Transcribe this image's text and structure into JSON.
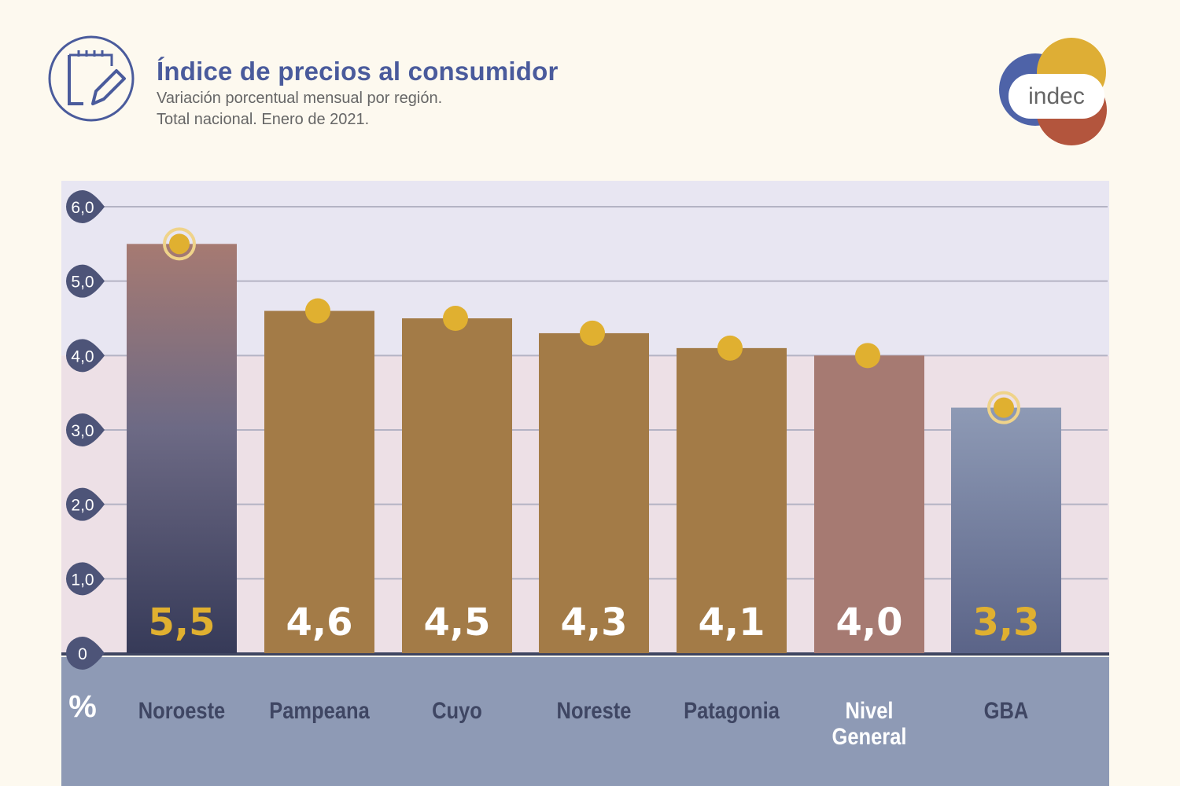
{
  "header": {
    "title": "Índice de precios al consumidor",
    "subtitle_line1": "Variación porcentual mensual por región.",
    "subtitle_line2": "Total nacional. Enero de 2021.",
    "icon": "notepad-pencil-icon",
    "logo_text": "indec"
  },
  "chart_data": {
    "type": "bar",
    "categories": [
      "Noroeste",
      "Pampeana",
      "Cuyo",
      "Noreste",
      "Patagonia",
      "Nivel General",
      "GBA"
    ],
    "values": [
      5.5,
      4.6,
      4.5,
      4.3,
      4.1,
      4.0,
      3.3
    ],
    "value_labels": [
      "5,5",
      "4,6",
      "4,5",
      "4,3",
      "4,1",
      "4,0",
      "3,3"
    ],
    "yticks": [
      "0",
      "1,0",
      "2,0",
      "3,0",
      "4,0",
      "5,0",
      "6,0"
    ],
    "ylabel": "%",
    "ylim": [
      0,
      6
    ],
    "grid": true,
    "highlighted": [
      "Noroeste",
      "GBA"
    ],
    "colors": {
      "regular": "#a37b47",
      "nivel_general": "#a67a72",
      "highlight_label": "#e0b030",
      "marker": "#e0b030",
      "axis_badge": "#4d5478",
      "bottom_band": "#8e9ab5"
    }
  }
}
